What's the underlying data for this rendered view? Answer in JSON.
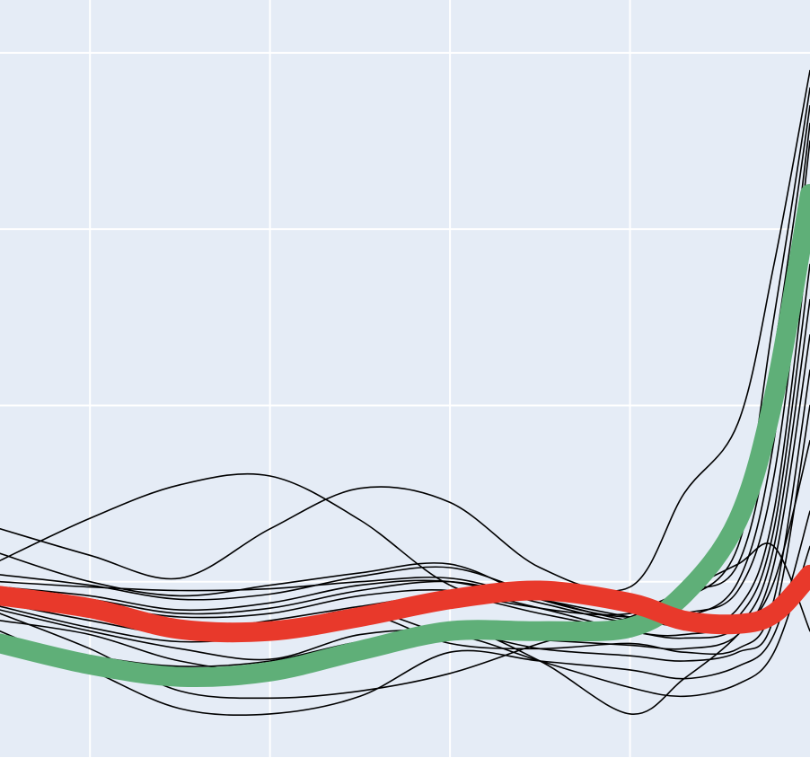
{
  "chart_data": {
    "type": "line",
    "xlim": [
      -0.5,
      4.0
    ],
    "ylim": [
      0.0,
      4.3
    ],
    "x_gridlines": [
      0,
      1,
      2,
      3
    ],
    "y_gridlines": [
      0,
      1,
      2,
      3,
      4
    ],
    "grid": true,
    "legend": "none",
    "background_color": "#e5ecf6",
    "grid_color": "#ffffff",
    "series": [
      {
        "color": "#000000",
        "emphasis": false,
        "x": [
          -0.5,
          0.0,
          0.5,
          1.0,
          1.5,
          2.0,
          2.5,
          3.0,
          3.3,
          3.6,
          3.8,
          4.0
        ],
        "y": [
          1.3,
          1.15,
          1.02,
          1.3,
          1.53,
          1.45,
          1.08,
          0.97,
          1.5,
          1.9,
          2.8,
          3.9
        ]
      },
      {
        "color": "#000000",
        "emphasis": false,
        "x": [
          -0.5,
          0.0,
          0.5,
          1.0,
          1.5,
          2.0,
          2.5,
          3.0,
          3.3,
          3.6,
          3.8,
          4.0
        ],
        "y": [
          1.12,
          1.36,
          1.55,
          1.6,
          1.35,
          0.98,
          0.85,
          0.82,
          0.98,
          1.3,
          2.5,
          3.8
        ]
      },
      {
        "color": "#000000",
        "emphasis": false,
        "x": [
          -0.5,
          0.0,
          0.5,
          1.0,
          1.5,
          2.0,
          2.5,
          3.0,
          3.3,
          3.6,
          3.8,
          4.0
        ],
        "y": [
          1.16,
          1.0,
          0.92,
          0.98,
          1.05,
          1.1,
          0.9,
          0.8,
          0.9,
          1.2,
          2.3,
          3.7
        ]
      },
      {
        "color": "#000000",
        "emphasis": false,
        "x": [
          -0.5,
          0.0,
          0.5,
          1.0,
          1.5,
          2.0,
          2.5,
          3.0,
          3.3,
          3.6,
          3.8,
          4.0
        ],
        "y": [
          1.04,
          0.98,
          0.9,
          0.93,
          1.03,
          1.08,
          0.93,
          0.85,
          0.95,
          1.1,
          2.0,
          3.6
        ]
      },
      {
        "color": "#000000",
        "emphasis": false,
        "x": [
          -0.5,
          0.0,
          0.5,
          1.0,
          1.5,
          2.0,
          2.5,
          3.0,
          3.3,
          3.6,
          3.8,
          4.0
        ],
        "y": [
          1.0,
          0.97,
          0.95,
          0.96,
          1.0,
          1.02,
          0.9,
          0.78,
          0.8,
          1.0,
          1.8,
          3.5
        ]
      },
      {
        "color": "#000000",
        "emphasis": false,
        "x": [
          -0.5,
          0.0,
          0.5,
          1.0,
          1.5,
          2.0,
          2.5,
          3.0,
          3.3,
          3.6,
          3.8,
          4.0
        ],
        "y": [
          0.97,
          0.92,
          0.84,
          0.88,
          0.98,
          1.0,
          0.88,
          0.77,
          0.82,
          0.95,
          1.6,
          3.2
        ]
      },
      {
        "color": "#000000",
        "emphasis": false,
        "x": [
          -0.5,
          0.0,
          0.5,
          1.0,
          1.5,
          2.0,
          2.5,
          3.0,
          3.3,
          3.6,
          3.8,
          4.0
        ],
        "y": [
          0.95,
          0.9,
          0.82,
          0.85,
          0.95,
          1.0,
          0.9,
          0.8,
          0.75,
          0.85,
          1.4,
          3.0
        ]
      },
      {
        "color": "#000000",
        "emphasis": false,
        "x": [
          -0.5,
          0.0,
          0.5,
          1.0,
          1.5,
          2.0,
          2.5,
          3.0,
          3.3,
          3.6,
          3.8,
          4.0
        ],
        "y": [
          0.93,
          0.87,
          0.8,
          0.82,
          0.92,
          0.95,
          0.85,
          0.72,
          0.7,
          0.8,
          1.3,
          2.8
        ]
      },
      {
        "color": "#000000",
        "emphasis": false,
        "x": [
          -0.5,
          0.0,
          0.5,
          1.0,
          1.5,
          2.0,
          2.5,
          3.0,
          3.3,
          3.6,
          3.8,
          4.0
        ],
        "y": [
          0.9,
          0.8,
          0.72,
          0.78,
          0.86,
          0.92,
          0.82,
          0.72,
          0.68,
          0.75,
          1.2,
          2.6
        ]
      },
      {
        "color": "#000000",
        "emphasis": false,
        "x": [
          -0.5,
          0.0,
          0.5,
          1.0,
          1.5,
          2.0,
          2.5,
          3.0,
          3.3,
          3.6,
          3.8,
          4.0
        ],
        "y": [
          0.88,
          0.78,
          0.7,
          0.74,
          0.84,
          0.7,
          0.67,
          0.64,
          0.62,
          0.7,
          1.1,
          2.4
        ]
      },
      {
        "color": "#000000",
        "emphasis": false,
        "x": [
          -0.5,
          0.0,
          0.5,
          1.0,
          1.5,
          2.0,
          2.5,
          3.0,
          3.3,
          3.6,
          3.8,
          4.0
        ],
        "y": [
          0.86,
          0.74,
          0.66,
          0.7,
          0.82,
          0.65,
          0.62,
          0.65,
          0.6,
          0.62,
          0.9,
          2.2
        ]
      },
      {
        "color": "#000000",
        "emphasis": false,
        "x": [
          -0.5,
          0.0,
          0.5,
          1.0,
          1.5,
          2.0,
          2.5,
          3.0,
          3.3,
          3.6,
          3.8,
          4.0
        ],
        "y": [
          0.84,
          0.72,
          0.62,
          0.56,
          0.7,
          0.72,
          0.62,
          0.58,
          0.55,
          0.6,
          0.8,
          2.0
        ]
      },
      {
        "color": "#000000",
        "emphasis": false,
        "x": [
          -0.5,
          0.0,
          0.5,
          1.0,
          1.5,
          2.0,
          2.5,
          3.0,
          3.3,
          3.6,
          3.8,
          4.0
        ],
        "y": [
          0.78,
          0.7,
          0.55,
          0.5,
          0.64,
          0.75,
          0.55,
          0.25,
          0.45,
          0.7,
          1.0,
          1.8
        ]
      },
      {
        "color": "#000000",
        "emphasis": false,
        "x": [
          -0.5,
          0.0,
          0.5,
          1.0,
          1.5,
          2.0,
          2.5,
          3.0,
          3.3,
          3.6,
          3.8,
          4.0
        ],
        "y": [
          0.72,
          0.5,
          0.28,
          0.25,
          0.35,
          0.6,
          0.55,
          0.5,
          0.45,
          0.52,
          0.7,
          1.4
        ]
      },
      {
        "color": "#000000",
        "emphasis": false,
        "x": [
          -0.5,
          0.0,
          0.5,
          1.0,
          1.5,
          2.0,
          2.5,
          3.0,
          3.3,
          3.6,
          3.8,
          4.0
        ],
        "y": [
          0.68,
          0.58,
          0.52,
          0.55,
          0.66,
          0.7,
          0.55,
          0.4,
          0.35,
          0.42,
          0.6,
          1.2
        ]
      },
      {
        "color": "#000000",
        "emphasis": false,
        "x": [
          -0.5,
          0.0,
          0.5,
          1.0,
          1.5,
          2.0,
          2.5,
          3.0,
          3.3,
          3.6,
          3.8,
          4.0
        ],
        "y": [
          0.82,
          0.62,
          0.38,
          0.34,
          0.38,
          0.48,
          0.65,
          0.8,
          0.95,
          1.1,
          1.2,
          0.72
        ]
      },
      {
        "color": "#5faf78",
        "emphasis": true,
        "x": [
          -0.5,
          0.0,
          0.5,
          1.0,
          1.5,
          2.0,
          2.5,
          3.0,
          3.3,
          3.6,
          3.8,
          4.0
        ],
        "y": [
          0.65,
          0.53,
          0.46,
          0.49,
          0.61,
          0.72,
          0.72,
          0.74,
          0.93,
          1.35,
          2.05,
          3.2
        ]
      },
      {
        "color": "#e8392b",
        "emphasis": true,
        "x": [
          -0.5,
          0.0,
          0.5,
          1.0,
          1.5,
          2.0,
          2.5,
          3.0,
          3.3,
          3.6,
          3.8,
          4.0
        ],
        "y": [
          0.92,
          0.85,
          0.73,
          0.72,
          0.8,
          0.9,
          0.95,
          0.88,
          0.78,
          0.76,
          0.82,
          1.04
        ]
      }
    ]
  }
}
